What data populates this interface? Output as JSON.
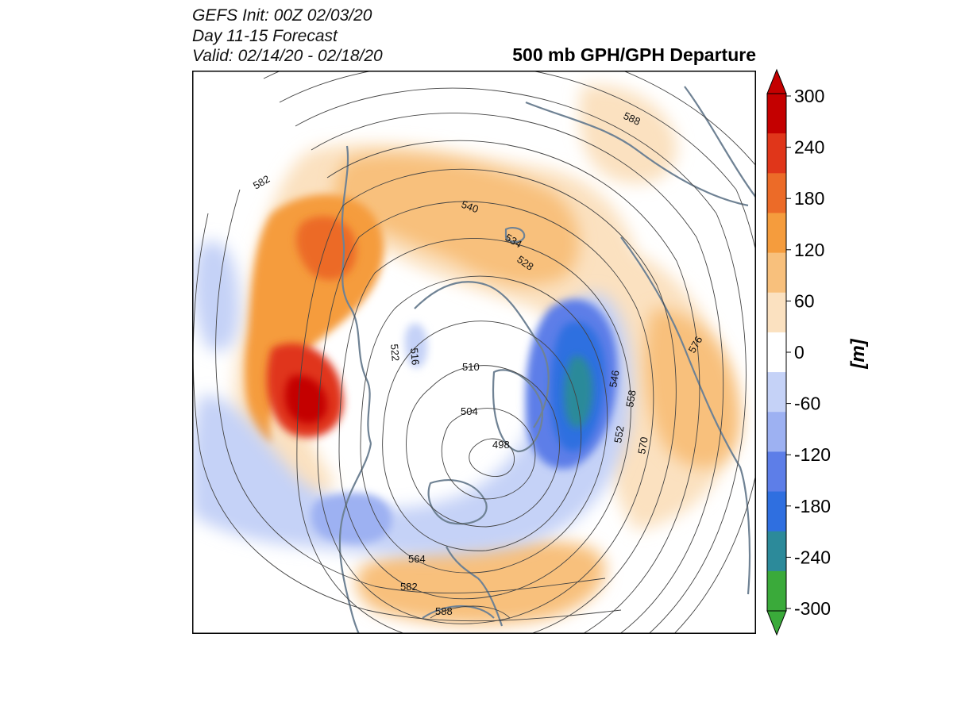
{
  "header": {
    "init": "GEFS Init: 00Z 02/03/20",
    "period": "Day 11-15 Forecast",
    "valid": "Valid: 02/14/20 - 02/18/20"
  },
  "title": "500 mb GPH/GPH Departure",
  "contour_labels": [
    "588",
    "582",
    "540",
    "534",
    "528",
    "522",
    "516",
    "510",
    "504",
    "498",
    "546",
    "552",
    "558",
    "570",
    "576",
    "564",
    "582",
    "588"
  ],
  "colorbar": {
    "unit": "[m]",
    "ticks": [
      "300",
      "240",
      "180",
      "120",
      "60",
      "0",
      "-60",
      "-120",
      "-180",
      "-240",
      "-300"
    ],
    "colors": [
      "#c40000",
      "#e0361a",
      "#ec6b28",
      "#f59c3d",
      "#f8c07c",
      "#fbe1c0",
      "#ffffff",
      "#c5d2f7",
      "#9db1f2",
      "#5d7ee8",
      "#2f6fe0",
      "#2c8a9a",
      "#3aaa3a"
    ]
  },
  "colors": {
    "land_outline": "#6f8294",
    "contour": "#444444",
    "frame": "#000000"
  }
}
